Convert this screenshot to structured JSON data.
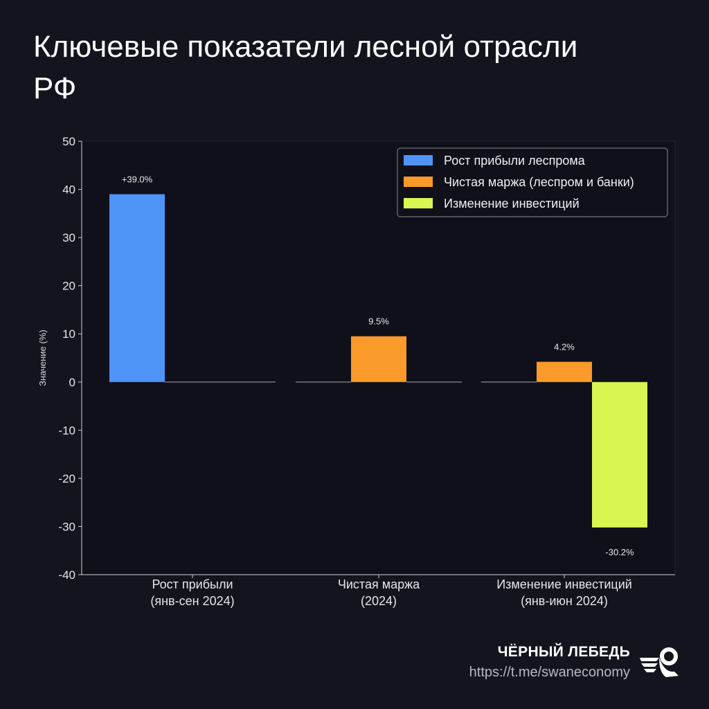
{
  "title": "Ключевые показатели лесной отрасли РФ",
  "brand": {
    "name": "ЧЁРНЫЙ ЛЕБЕДЬ",
    "url": "https://t.me/swaneconomy"
  },
  "chart_data": {
    "type": "bar",
    "title": "",
    "xlabel": "",
    "ylabel": "Значение (%)",
    "ylim": [
      -40,
      50
    ],
    "yticks": [
      -40,
      -30,
      -20,
      -10,
      0,
      10,
      20,
      30,
      40,
      50
    ],
    "grid": false,
    "legend_position": "top-right",
    "categories": [
      [
        "Рост прибыли",
        "(янв-сен 2024)"
      ],
      [
        "Чистая маржа",
        "(2024)"
      ],
      [
        "Изменение инвестиций",
        "(янв-июн 2024)"
      ]
    ],
    "series": [
      {
        "name": "Рост прибыли леспрома",
        "color": "#4f94f7",
        "values": [
          39.0,
          0,
          0
        ],
        "labels": [
          "+39.0%",
          "",
          ""
        ]
      },
      {
        "name": "Чистая маржа (леспром и банки)",
        "color": "#fa9a2a",
        "values": [
          0,
          9.5,
          4.2
        ],
        "labels": [
          "",
          "9.5%",
          "4.2%"
        ]
      },
      {
        "name": "Изменение инвестиций",
        "color": "#d9f552",
        "values": [
          0,
          0,
          -30.2
        ],
        "labels": [
          "",
          "",
          "-30.2%"
        ]
      }
    ]
  }
}
